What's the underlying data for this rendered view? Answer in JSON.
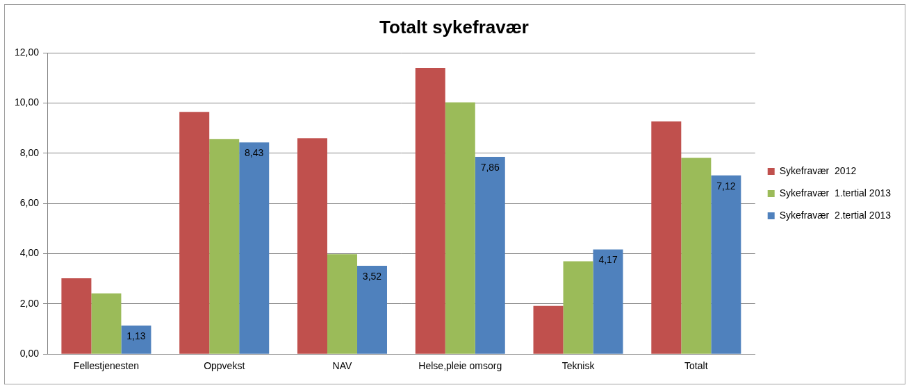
{
  "chart_data": {
    "type": "bar",
    "title": "Totalt sykefravær",
    "categories": [
      "Fellestjenesten",
      "Oppvekst",
      "NAV",
      "Helse,pleie omsorg",
      "Teknisk",
      "Totalt"
    ],
    "series": [
      {
        "name": "Sykefravær  2012",
        "color": "#c0504d",
        "values": [
          3.02,
          9.65,
          8.6,
          11.4,
          1.92,
          9.27
        ]
      },
      {
        "name": "Sykefravær  1.tertial 2013",
        "color": "#9bbb59",
        "values": [
          2.42,
          8.57,
          3.98,
          10.03,
          3.7,
          7.82
        ]
      },
      {
        "name": "Sykefravær  2.tertial 2013",
        "color": "#4f81bd",
        "values": [
          1.13,
          8.43,
          3.52,
          7.86,
          4.17,
          7.12
        ],
        "data_labels": true,
        "value_labels": [
          "1,13",
          "8,43",
          "3,52",
          "7,86",
          "4,17",
          "7,12"
        ]
      }
    ],
    "ylim": [
      0,
      12
    ],
    "yticks": [
      {
        "value": 0,
        "label": "0,00"
      },
      {
        "value": 2,
        "label": "2,00"
      },
      {
        "value": 4,
        "label": "4,00"
      },
      {
        "value": 6,
        "label": "6,00"
      },
      {
        "value": 8,
        "label": "8,00"
      },
      {
        "value": 10,
        "label": "10,00"
      },
      {
        "value": 12,
        "label": "12,00"
      }
    ],
    "grid": true,
    "legend": "right"
  }
}
